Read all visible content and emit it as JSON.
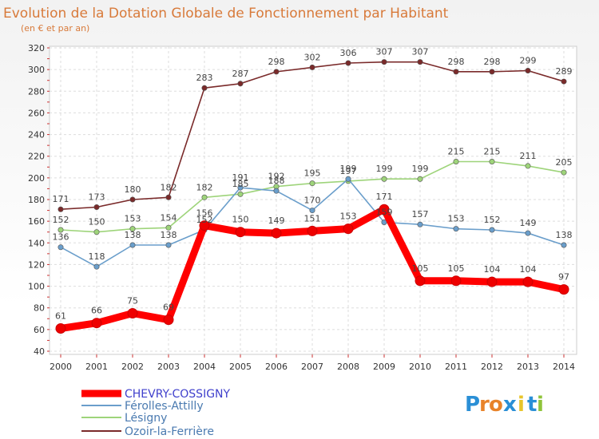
{
  "chart_data": {
    "type": "line",
    "title": "Evolution de la Dotation Globale de Fonctionnement par Habitant",
    "subtitle": "(en € et par an)",
    "xlabel": "",
    "ylabel": "",
    "ylim": [
      40,
      320
    ],
    "y_ticks": [
      "40",
      "60",
      "80",
      "100",
      "120",
      "140",
      "160",
      "180",
      "200",
      "220",
      "240",
      "260",
      "280",
      "300",
      "320"
    ],
    "categories": [
      "2000",
      "2001",
      "2002",
      "2003",
      "2004",
      "2005",
      "2006",
      "2007",
      "2008",
      "2009",
      "2010",
      "2011",
      "2012",
      "2013",
      "2014"
    ],
    "grid": true,
    "legend_position": "bottom-left",
    "series": [
      {
        "name": "CHEVRY-COSSIGNY",
        "color": "#ff0000",
        "legend_color": "#4040cc",
        "values": [
          61,
          66,
          75,
          69,
          156,
          150,
          149,
          151,
          153,
          171,
          105,
          105,
          104,
          104,
          97
        ],
        "labels": [
          "61",
          "66",
          "75",
          "69",
          "156",
          "150",
          "149",
          "151",
          "153",
          "171",
          "105",
          "105",
          "104",
          "104",
          "97"
        ]
      },
      {
        "name": "Férolles-Attilly",
        "color": "#6a9ecb",
        "legend_color": "#4a7ab0",
        "values": [
          136,
          118,
          138,
          138,
          152,
          191,
          188,
          170,
          199,
          159,
          157,
          153,
          152,
          149,
          138
        ],
        "labels": [
          "136",
          "118",
          "138",
          "138",
          "152",
          "191",
          "188",
          "170",
          "199",
          "159",
          "157",
          "153",
          "152",
          "149",
          "138"
        ]
      },
      {
        "name": "Lésigny",
        "color": "#9ed47a",
        "legend_color": "#4a7ab0",
        "values": [
          152,
          150,
          153,
          154,
          182,
          185,
          192,
          195,
          197,
          199,
          199,
          215,
          215,
          211,
          205
        ],
        "labels": [
          "152",
          "150",
          "153",
          "154",
          "182",
          "185",
          "192",
          "195",
          "197",
          "199",
          "199",
          "215",
          "215",
          "211",
          "205"
        ]
      },
      {
        "name": "Ozoir-la-Ferrière",
        "color": "#7a2a2a",
        "legend_color": "#4a7ab0",
        "values": [
          171,
          173,
          180,
          182,
          283,
          287,
          298,
          302,
          306,
          307,
          307,
          298,
          298,
          299,
          289
        ],
        "labels": [
          "171",
          "173",
          "180",
          "182",
          "283",
          "287",
          "298",
          "302",
          "306",
          "307",
          "307",
          "298",
          "298",
          "299",
          "289"
        ]
      }
    ]
  },
  "logo": {
    "letters": [
      "P",
      "r",
      "o",
      "x",
      "i",
      "t",
      "i"
    ],
    "colors": [
      "#2a8fd6",
      "#e8832a",
      "#e8832a",
      "#2a8fd6",
      "#e8c52a",
      "#2a8fd6",
      "#8fc43a"
    ]
  }
}
